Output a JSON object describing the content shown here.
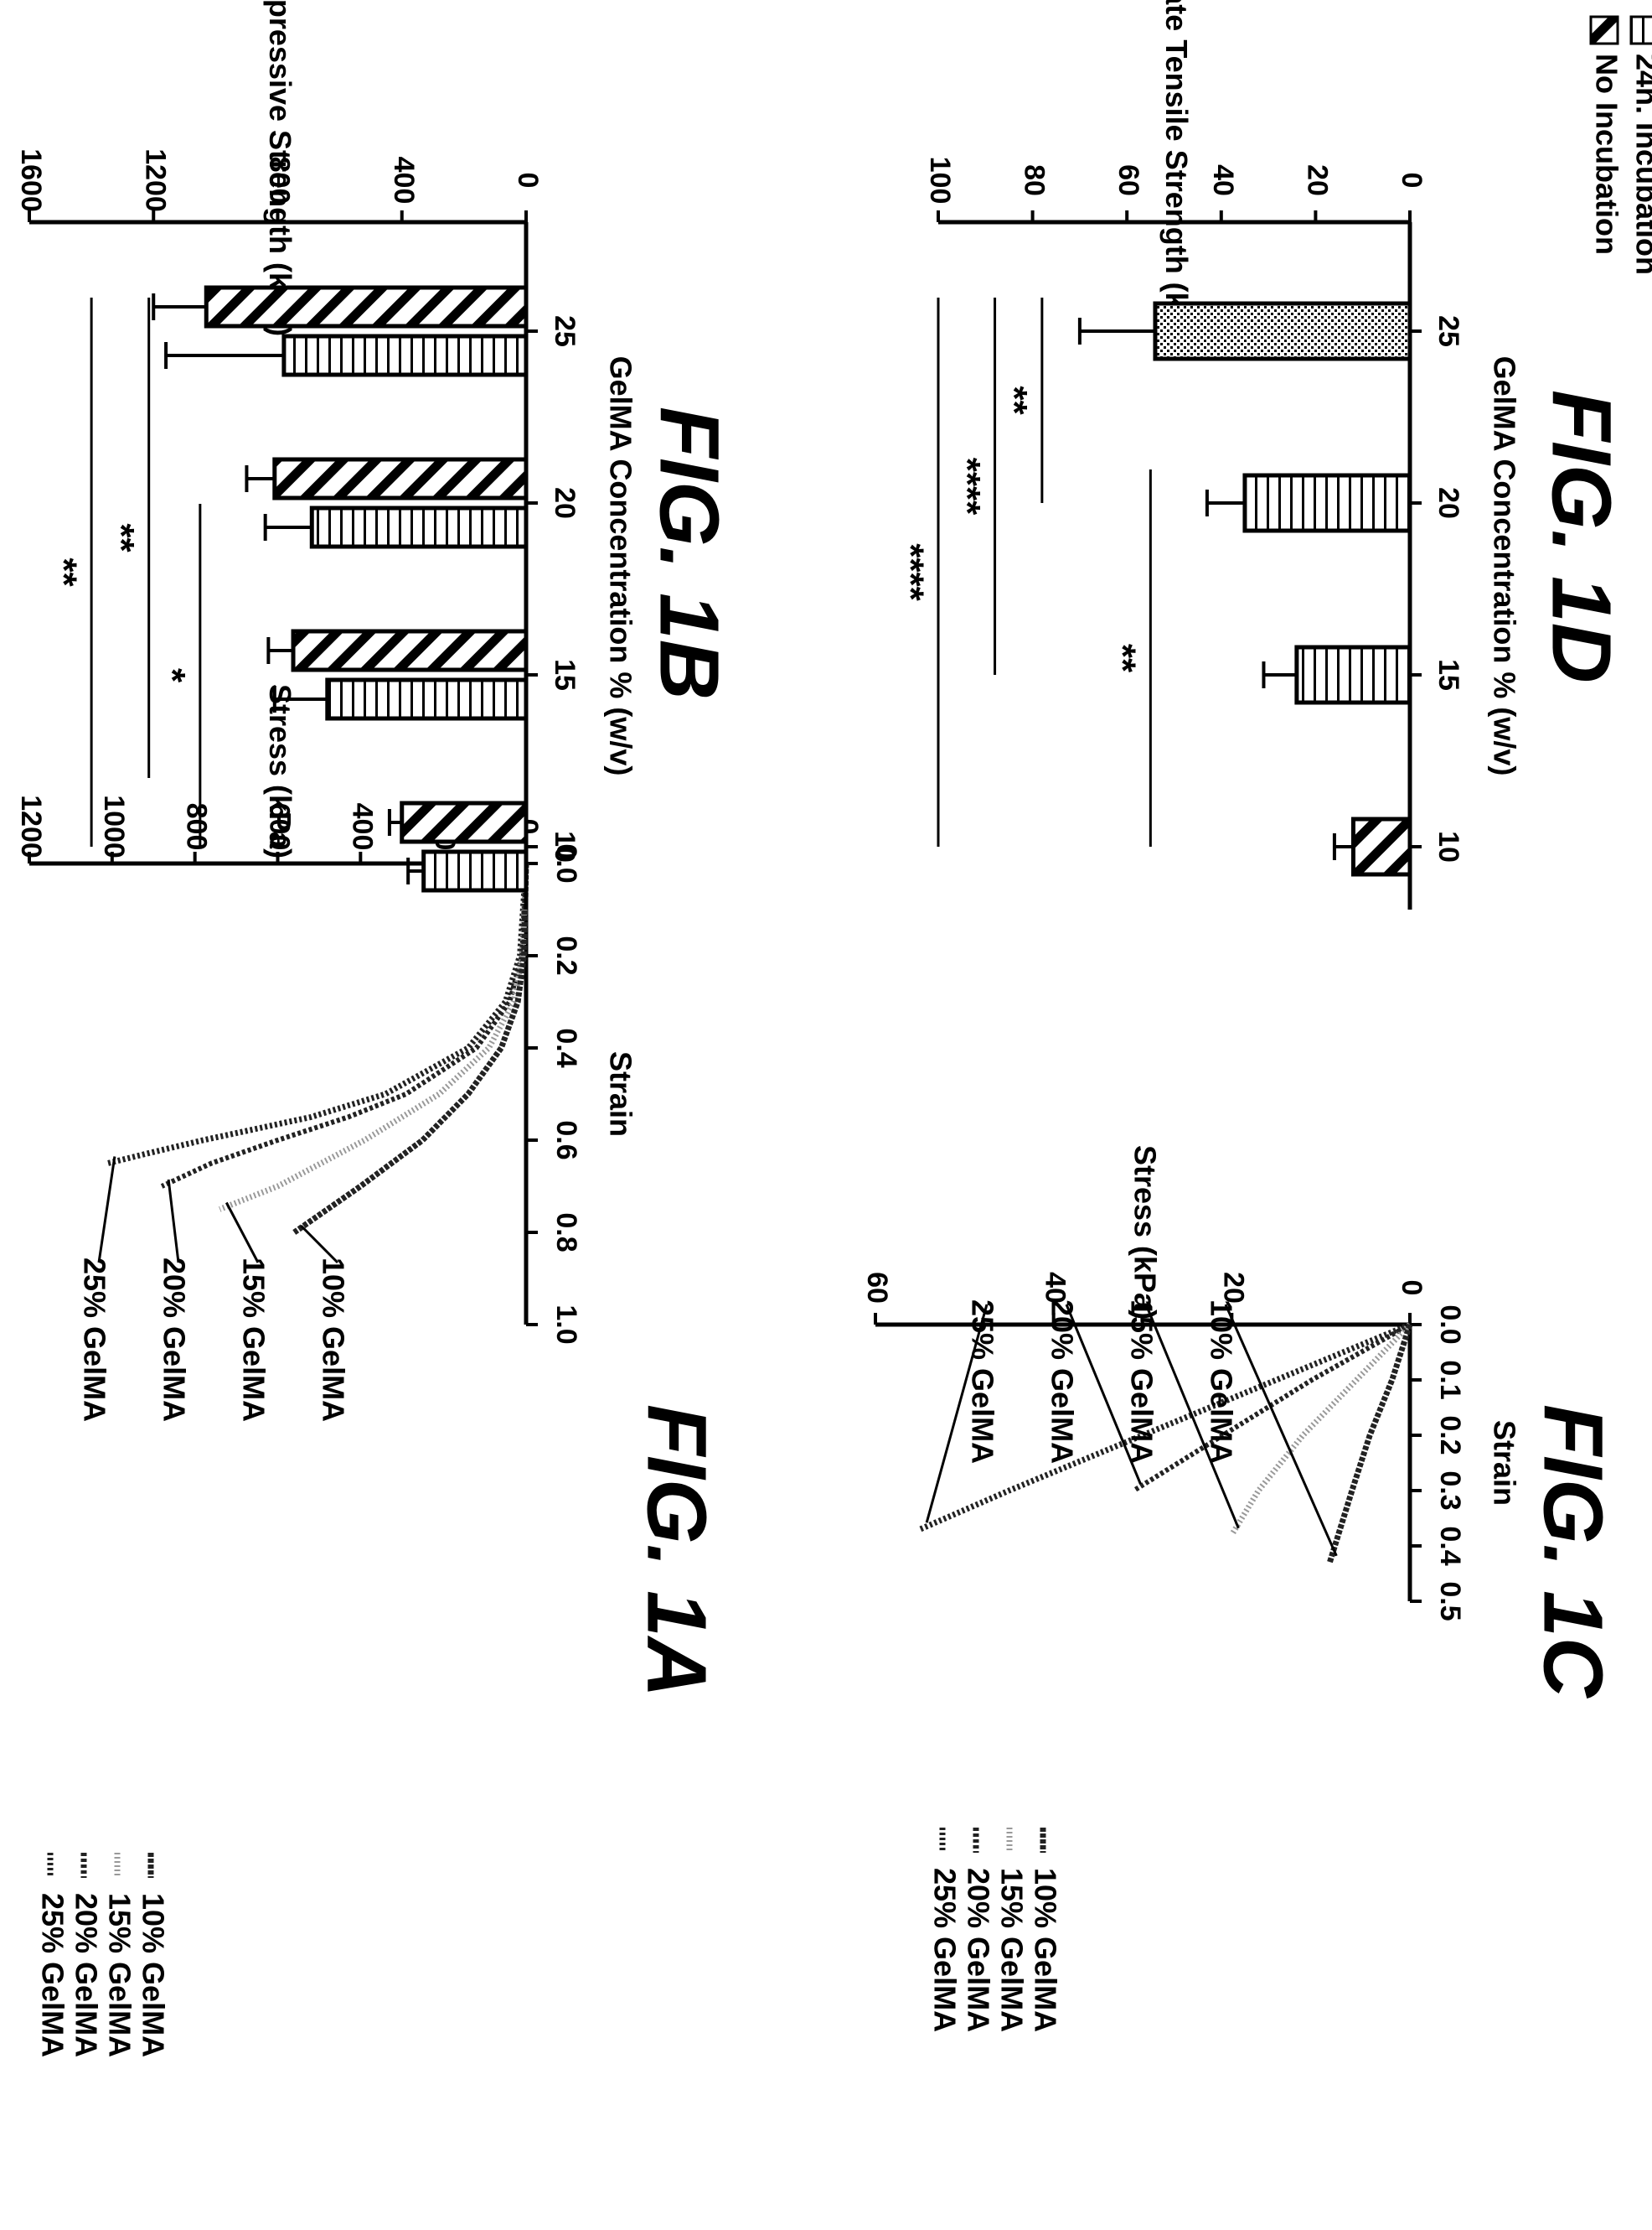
{
  "chart_data": [
    {
      "id": "fig1a",
      "type": "line",
      "caption": "FIG. 1A",
      "xlabel": "Strain",
      "ylabel": "Stress (kPa)",
      "xlim": [
        0.0,
        1.0
      ],
      "ylim": [
        0,
        1200
      ],
      "xticks": [
        "0.0",
        "0.2",
        "0.4",
        "0.6",
        "0.8",
        "1.0"
      ],
      "yticks": [
        "0",
        "200",
        "400",
        "600",
        "800",
        "1000",
        "1200"
      ],
      "legend": [
        "25% GelMA",
        "20% GelMA",
        "15% GelMA",
        "10% GelMA"
      ],
      "curve_labels": [
        "25% GelMA",
        "20% GelMA",
        "15% GelMA",
        "10% GelMA"
      ],
      "series": [
        {
          "name": "25% GelMA",
          "x": [
            0.0,
            0.2,
            0.3,
            0.4,
            0.5,
            0.55,
            0.6,
            0.63,
            0.65
          ],
          "y": [
            0,
            15,
            50,
            140,
            340,
            520,
            780,
            920,
            1010
          ]
        },
        {
          "name": "20% GelMA",
          "x": [
            0.0,
            0.2,
            0.3,
            0.4,
            0.5,
            0.55,
            0.6,
            0.65,
            0.7
          ],
          "y": [
            0,
            10,
            40,
            120,
            290,
            430,
            600,
            760,
            880
          ]
        },
        {
          "name": "15% GelMA",
          "x": [
            0.0,
            0.2,
            0.3,
            0.4,
            0.5,
            0.6,
            0.7,
            0.75
          ],
          "y": [
            0,
            8,
            30,
            90,
            210,
            390,
            600,
            740
          ]
        },
        {
          "name": "10% GelMA",
          "x": [
            0.0,
            0.2,
            0.3,
            0.4,
            0.5,
            0.6,
            0.7,
            0.8
          ],
          "y": [
            0,
            5,
            20,
            60,
            140,
            250,
            400,
            560
          ]
        }
      ]
    },
    {
      "id": "fig1b",
      "type": "bar",
      "caption": "FIG. 1B",
      "xlabel": "GelMA Concentration % (w/v)",
      "ylabel": "Compressive Strength (kPa)",
      "ylim": [
        0,
        1600
      ],
      "yticks": [
        "0",
        "400",
        "800",
        "1200",
        "1600"
      ],
      "categories": [
        "10",
        "15",
        "20",
        "25"
      ],
      "legend": [
        "No Incubation",
        "24h. Incubation"
      ],
      "series": [
        {
          "name": "No Incubation",
          "values": [
            400,
            750,
            810,
            1030
          ],
          "errors": [
            40,
            80,
            90,
            170
          ]
        },
        {
          "name": "24h. Incubation",
          "values": [
            330,
            640,
            690,
            780
          ],
          "errors": [
            50,
            170,
            150,
            380
          ]
        }
      ],
      "significance": [
        {
          "label": "**",
          "x_from": 10,
          "x_to": 25,
          "y": 1400
        },
        {
          "label": "**",
          "x_from": 12,
          "x_to": 25,
          "y": 1215
        },
        {
          "label": "*",
          "x_from": 10,
          "x_to": 19,
          "y": 1050
        }
      ]
    },
    {
      "id": "fig1c",
      "type": "line",
      "caption": "FIG. 1C",
      "xlabel": "Strain",
      "ylabel": "Stress (kPa)",
      "xlim": [
        0.0,
        0.5
      ],
      "ylim": [
        0,
        60
      ],
      "xticks": [
        "0.0",
        "0.1",
        "0.2",
        "0.3",
        "0.4",
        "0.5"
      ],
      "yticks": [
        "0",
        "20",
        "40",
        "60"
      ],
      "legend": [
        "25% GelMA",
        "20% GelMA",
        "15% GelMA",
        "10% GelMA"
      ],
      "curve_labels": [
        "25% GelMA",
        "20% GelMA",
        "15% GelMA",
        "10% GelMA"
      ],
      "series": [
        {
          "name": "25% GelMA",
          "x": [
            0.0,
            0.1,
            0.2,
            0.3,
            0.37
          ],
          "y": [
            0,
            15,
            30,
            45,
            55
          ]
        },
        {
          "name": "20% GelMA",
          "x": [
            0.0,
            0.1,
            0.2,
            0.3
          ],
          "y": [
            0,
            11,
            21,
            31
          ]
        },
        {
          "name": "15% GelMA",
          "x": [
            0.0,
            0.1,
            0.2,
            0.3,
            0.38
          ],
          "y": [
            0,
            6,
            12,
            17,
            20
          ]
        },
        {
          "name": "10% GelMA",
          "x": [
            0.0,
            0.1,
            0.2,
            0.3,
            0.43
          ],
          "y": [
            0,
            2,
            4.5,
            6.5,
            9
          ]
        }
      ]
    },
    {
      "id": "fig1d",
      "type": "bar",
      "caption": "FIG. 1D",
      "xlabel": "GelMA Concentration % (w/v)",
      "ylabel": "Ultimate Tensile Strength (kPa)",
      "ylim": [
        0,
        100
      ],
      "yticks": [
        "0",
        "20",
        "40",
        "60",
        "80",
        "100"
      ],
      "categories": [
        "10",
        "15",
        "20",
        "25"
      ],
      "values": [
        12,
        24,
        35,
        54
      ],
      "errors": [
        4,
        7,
        8,
        16
      ],
      "significance": [
        {
          "label": "****",
          "x_from": 10,
          "x_to": 25,
          "y": 100
        },
        {
          "label": "****",
          "x_from": 15,
          "x_to": 25,
          "y": 88
        },
        {
          "label": "**",
          "x_from": 20,
          "x_to": 25,
          "y": 78
        },
        {
          "label": "**",
          "x_from": 10,
          "x_to": 20,
          "y": 55
        }
      ]
    }
  ]
}
